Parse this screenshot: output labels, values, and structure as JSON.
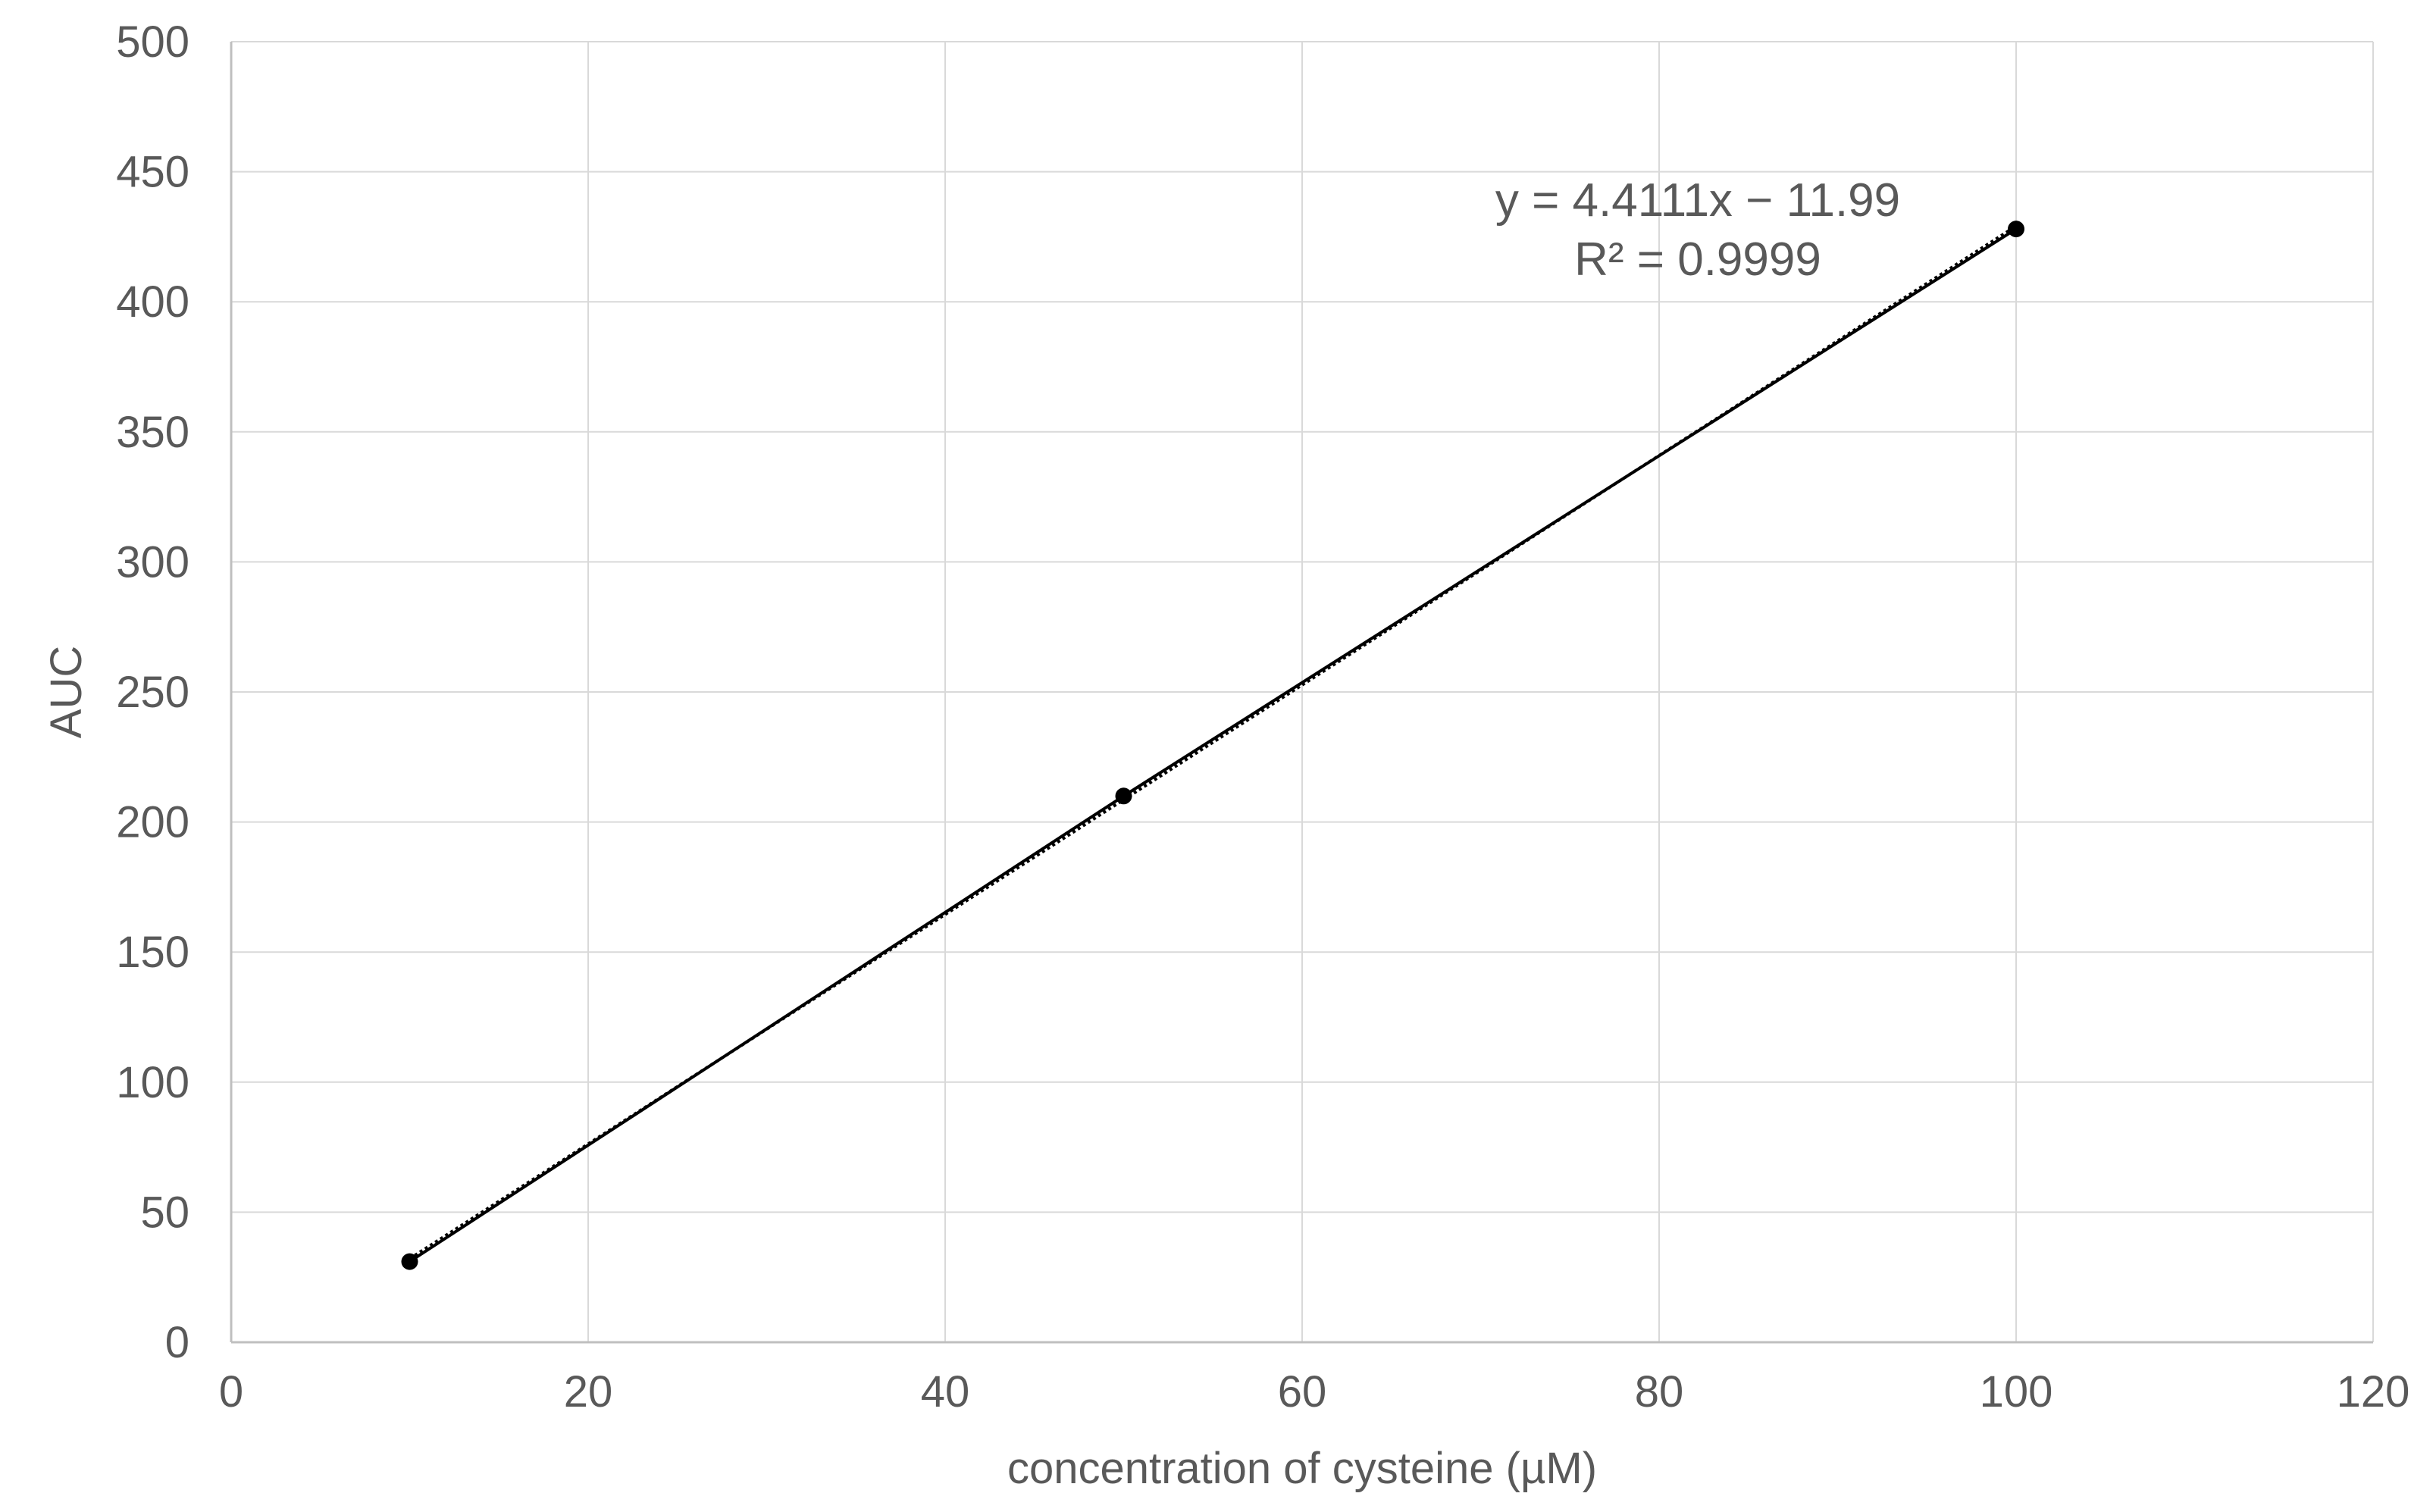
{
  "chart_data": {
    "type": "scatter",
    "xlabel": "concentration of cysteine (µM)",
    "ylabel": "AUC",
    "xlim": [
      0,
      120
    ],
    "ylim": [
      0,
      500
    ],
    "x_ticks": [
      0,
      20,
      40,
      60,
      80,
      100,
      120
    ],
    "y_ticks": [
      0,
      50,
      100,
      150,
      200,
      250,
      300,
      350,
      400,
      450,
      500
    ],
    "grid": true,
    "series": [
      {
        "x": [
          10,
          50,
          100
        ],
        "y": [
          31,
          210,
          428
        ],
        "color": "#000000",
        "style": "line-with-markers"
      }
    ],
    "trendline": {
      "type": "linear",
      "slope": 4.4111,
      "intercept": -11.99,
      "equation": "y = 4.4111x − 11.99",
      "r_squared": "R² = 0.9999"
    }
  }
}
